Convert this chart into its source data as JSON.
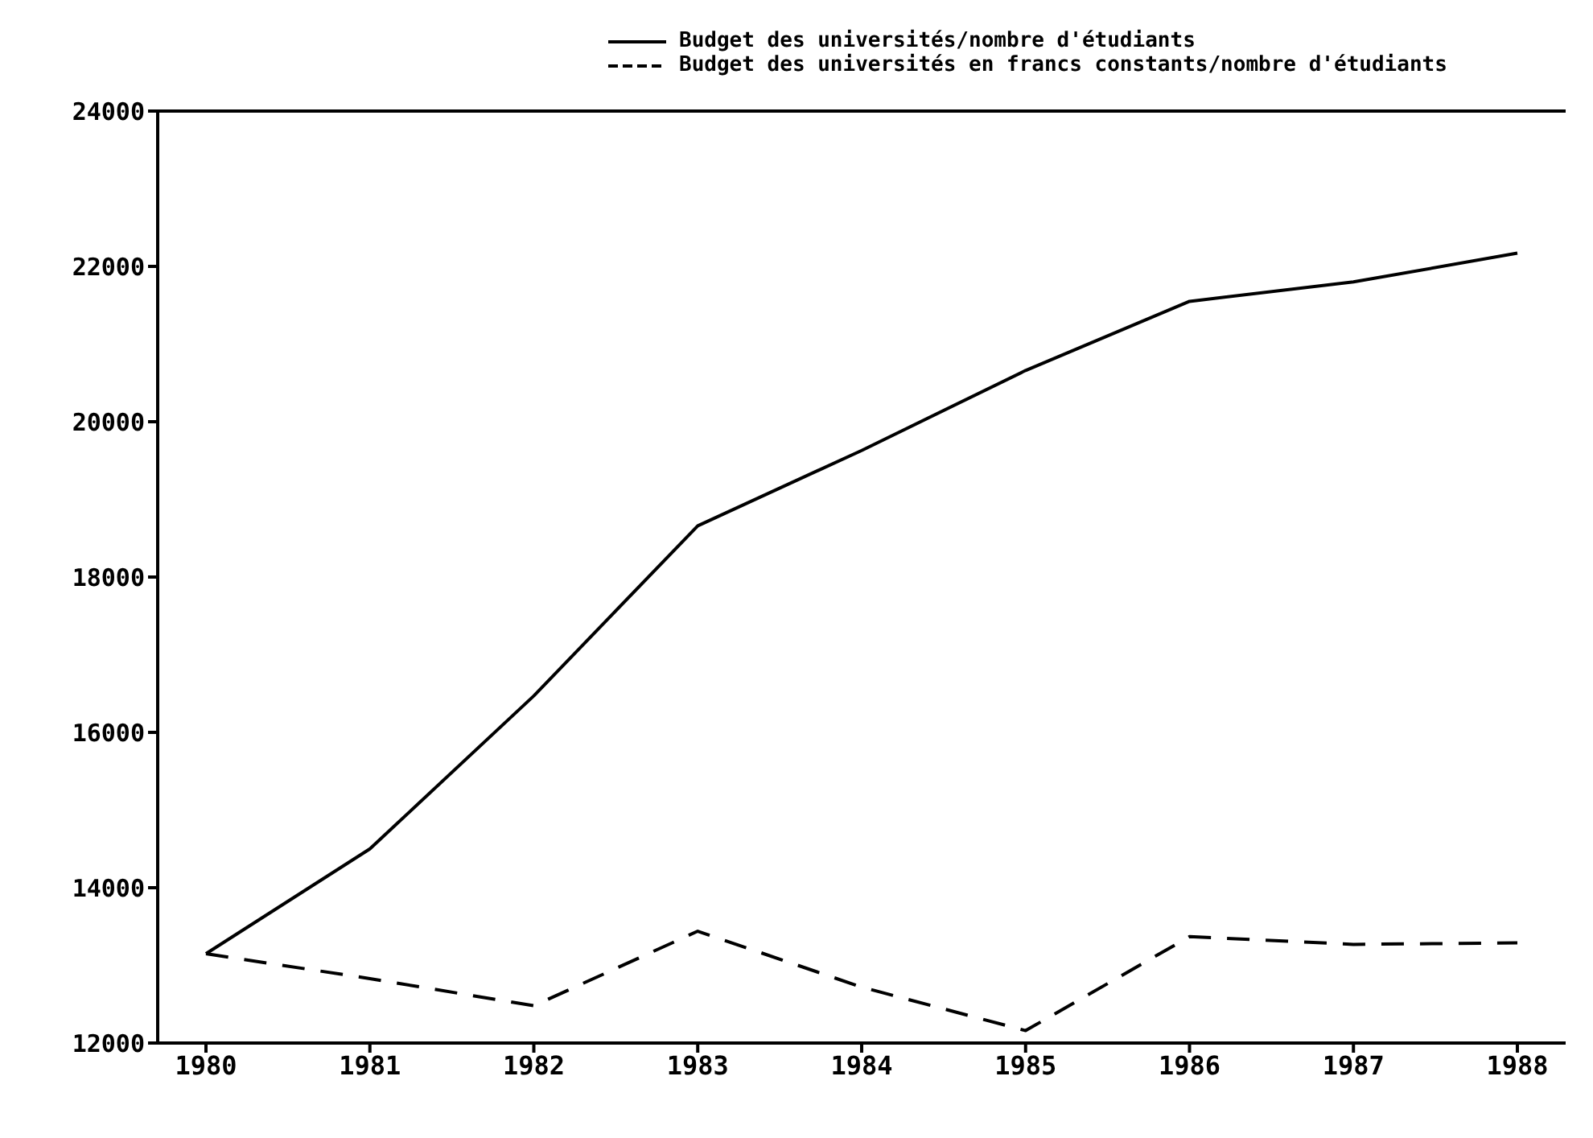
{
  "chart_data": {
    "type": "line",
    "categories": [
      "1980",
      "1981",
      "1982",
      "1983",
      "1984",
      "1985",
      "1986",
      "1987",
      "1988"
    ],
    "series": [
      {
        "name": "Budget des universités/nombre d'étudiants",
        "color": "#000000",
        "line_style": "solid",
        "values": [
          13150,
          14500,
          16470,
          18660,
          19630,
          20660,
          21550,
          21800,
          22170
        ]
      },
      {
        "name": "Budget des universités en francs constants/nombre d'étudiants",
        "color": "#000000",
        "line_style": "dashed",
        "values": [
          13150,
          12830,
          12480,
          13440,
          12720,
          12160,
          13370,
          13270,
          13290
        ]
      }
    ],
    "ylim": [
      12000,
      24000
    ],
    "yticks": [
      12000,
      14000,
      16000,
      18000,
      20000,
      22000,
      24000
    ],
    "grid": false,
    "legend": "top",
    "marker": "none"
  }
}
